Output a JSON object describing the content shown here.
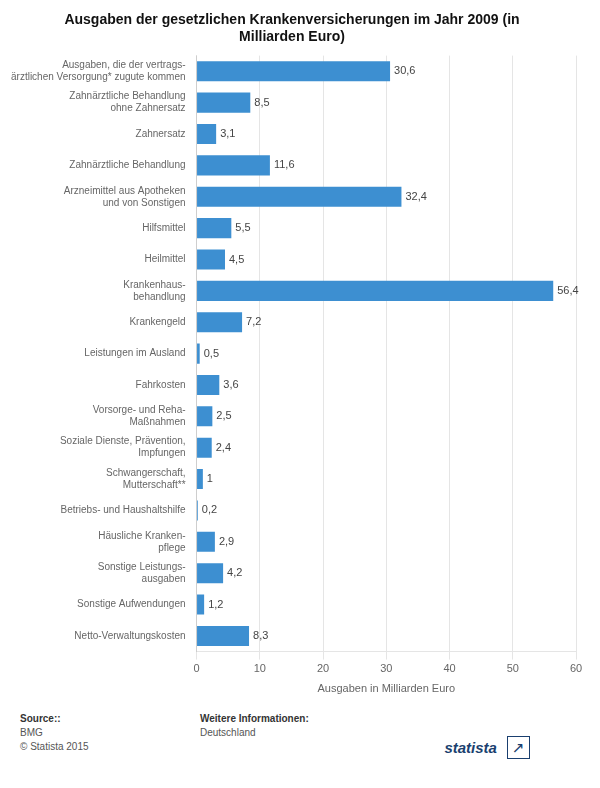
{
  "chart_data": {
    "type": "bar",
    "orientation": "horizontal",
    "title": "Ausgaben der gesetzlichen Krankenversicherungen im Jahr 2009 (in\nMilliarden Euro)",
    "categories": [
      "Ausgaben, die der vertrags-\närztlichen Versorgung* zugute kommen",
      "Zahnärztliche Behandlung\nohne Zahnersatz",
      "Zahnersatz",
      "Zahnärztliche Behandlung",
      "Arzneimittel aus Apotheken\nund von Sonstigen",
      "Hilfsmittel",
      "Heilmittel",
      "Krankenhaus-\nbehandlung",
      "Krankengeld",
      "Leistungen im Ausland",
      "Fahrkosten",
      "Vorsorge- und Reha-\nMaßnahmen",
      "Soziale Dienste, Prävention,\nImpfungen",
      "Schwangerschaft,\nMutterschaft**",
      "Betriebs- und Haushaltshilfe",
      "Häusliche Kranken-\npflege",
      "Sonstige Leistungs-\nausgaben",
      "Sonstige Aufwendungen",
      "Netto-Verwaltungskosten"
    ],
    "values": [
      30.6,
      8.5,
      3.1,
      11.6,
      32.4,
      5.5,
      4.5,
      56.4,
      7.2,
      0.5,
      3.6,
      2.5,
      2.4,
      1.0,
      0.2,
      2.9,
      4.2,
      1.2,
      8.3
    ],
    "value_labels": [
      "30,6",
      "8,5",
      "3,1",
      "11,6",
      "32,4",
      "5,5",
      "4,5",
      "56,4",
      "7,2",
      "0,5",
      "3,6",
      "2,5",
      "2,4",
      "1",
      "0,2",
      "2,9",
      "4,2",
      "1,2",
      "8,3"
    ],
    "data_labels": true,
    "color": "#3d8fd1",
    "xlabel": "Ausgaben in Milliarden Euro",
    "xlim": [
      0,
      60
    ],
    "xticks": [
      0,
      10,
      20,
      30,
      40,
      50,
      60
    ],
    "grid": true,
    "annotations": [
      "Source::",
      "BMG\n© Statista 2015",
      "Weitere Informationen:",
      "Deutschland",
      "statista",
      "↗"
    ]
  }
}
